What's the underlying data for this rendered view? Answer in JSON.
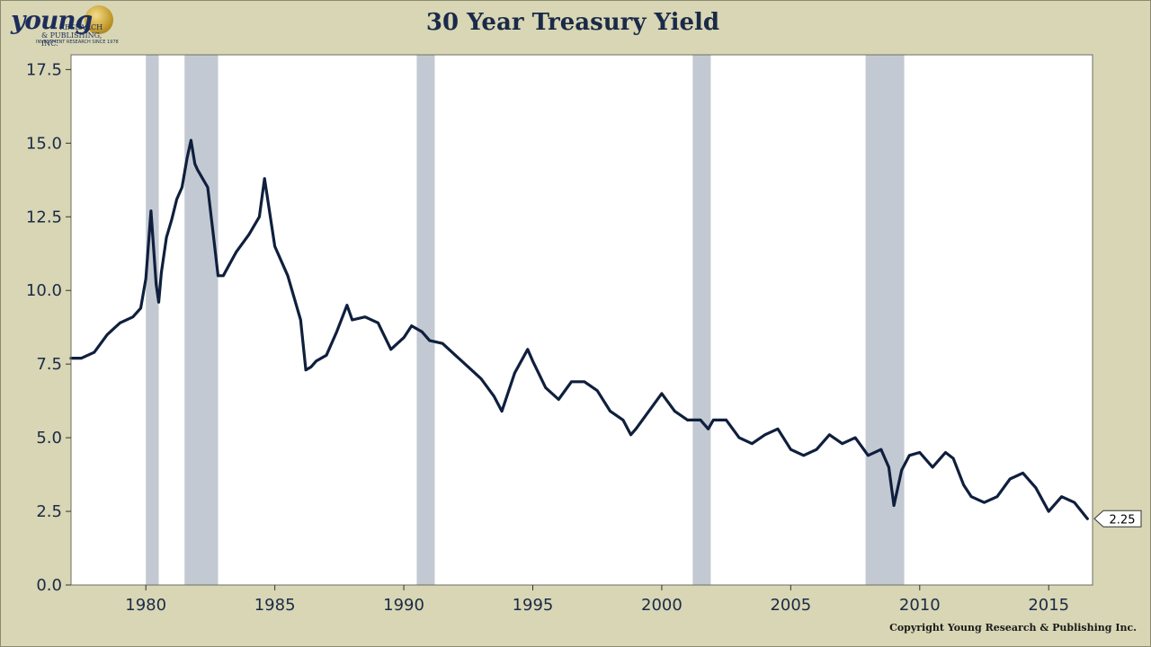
{
  "logo": {
    "word": "young",
    "line1": "RESEARCH",
    "line2": "& PUBLISHING, INC.",
    "line3": "INVESTMENT RESEARCH SINCE 1978"
  },
  "copyright": "Copyright Young Research & Publishing Inc.",
  "colors": {
    "line": "#0f1f3d",
    "recession": "#c3c9d2",
    "plot_bg": "#ffffff",
    "page_bg": "#d8d6b4"
  },
  "chart_data": {
    "type": "line",
    "title": "30 Year Treasury Yield",
    "xlabel": "",
    "ylabel": "",
    "xlim": [
      1977.1,
      2016.7
    ],
    "ylim": [
      0,
      18
    ],
    "x_ticks": [
      1980,
      1985,
      1990,
      1995,
      2000,
      2005,
      2010,
      2015
    ],
    "x_tick_labels": [
      "1980",
      "1985",
      "1990",
      "1995",
      "2000",
      "2005",
      "2010",
      "2015"
    ],
    "y_ticks": [
      0,
      2.5,
      5,
      7.5,
      10,
      12.5,
      15,
      17.5
    ],
    "y_tick_labels": [
      "0.0",
      "2.5",
      "5.0",
      "7.5",
      "10.0",
      "12.5",
      "15.0",
      "17.5"
    ],
    "grid": false,
    "last_value_label": "2.25",
    "recessions": [
      [
        1980.0,
        1980.5
      ],
      [
        1981.5,
        1982.8
      ],
      [
        1990.5,
        1991.2
      ],
      [
        2001.2,
        2001.9
      ],
      [
        2007.9,
        2009.4
      ]
    ],
    "series": [
      {
        "x": [
          1977.1,
          1977.5,
          1978.0,
          1978.5,
          1979.0,
          1979.5,
          1979.8,
          1980.0,
          1980.2,
          1980.4,
          1980.5,
          1980.6,
          1980.8,
          1981.0,
          1981.2,
          1981.4,
          1981.6,
          1981.75,
          1981.9,
          1982.0,
          1982.2,
          1982.4,
          1982.6,
          1982.8,
          1983.0,
          1983.5,
          1984.0,
          1984.4,
          1984.6,
          1985.0,
          1985.5,
          1986.0,
          1986.2,
          1986.4,
          1986.6,
          1987.0,
          1987.4,
          1987.8,
          1988.0,
          1988.5,
          1989.0,
          1989.5,
          1990.0,
          1990.3,
          1990.7,
          1991.0,
          1991.5,
          1992.0,
          1992.5,
          1993.0,
          1993.5,
          1993.8,
          1994.3,
          1994.8,
          1995.0,
          1995.5,
          1996.0,
          1996.5,
          1997.0,
          1997.5,
          1998.0,
          1998.5,
          1998.8,
          1999.0,
          1999.5,
          2000.0,
          2000.5,
          2001.0,
          2001.5,
          2001.8,
          2002.0,
          2002.5,
          2003.0,
          2003.5,
          2004.0,
          2004.5,
          2005.0,
          2005.5,
          2006.0,
          2006.5,
          2007.0,
          2007.5,
          2008.0,
          2008.5,
          2008.8,
          2009.0,
          2009.3,
          2009.6,
          2010.0,
          2010.5,
          2011.0,
          2011.3,
          2011.7,
          2012.0,
          2012.5,
          2013.0,
          2013.5,
          2014.0,
          2014.5,
          2015.0,
          2015.5,
          2016.0,
          2016.5
        ],
        "values": [
          7.7,
          7.7,
          7.9,
          8.5,
          8.9,
          9.1,
          9.4,
          10.4,
          12.7,
          10.2,
          9.6,
          10.6,
          11.8,
          12.4,
          13.1,
          13.5,
          14.5,
          15.1,
          14.3,
          14.1,
          13.8,
          13.5,
          12.0,
          10.5,
          10.5,
          11.3,
          11.9,
          12.5,
          13.8,
          11.5,
          10.5,
          9.0,
          7.3,
          7.4,
          7.6,
          7.8,
          8.6,
          9.5,
          9.0,
          9.1,
          8.9,
          8.0,
          8.4,
          8.8,
          8.6,
          8.3,
          8.2,
          7.8,
          7.4,
          7.0,
          6.4,
          5.9,
          7.2,
          8.0,
          7.6,
          6.7,
          6.3,
          6.9,
          6.9,
          6.6,
          5.9,
          5.6,
          5.1,
          5.3,
          5.9,
          6.5,
          5.9,
          5.6,
          5.6,
          5.3,
          5.6,
          5.6,
          5.0,
          4.8,
          5.1,
          5.3,
          4.6,
          4.4,
          4.6,
          5.1,
          4.8,
          5.0,
          4.4,
          4.6,
          4.0,
          2.7,
          3.9,
          4.4,
          4.5,
          4.0,
          4.5,
          4.3,
          3.4,
          3.0,
          2.8,
          3.0,
          3.6,
          3.8,
          3.3,
          2.5,
          3.0,
          2.8,
          2.25
        ]
      }
    ]
  }
}
